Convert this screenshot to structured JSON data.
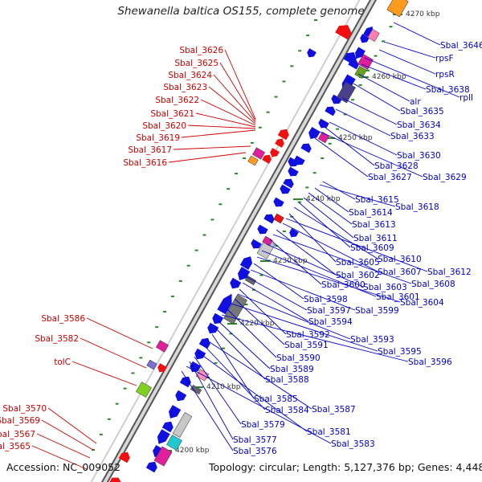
{
  "header": {
    "title": "Shewanella baltica OS155, complete genome"
  },
  "footer": {
    "accession": "Accession: NC_009052",
    "topology": "Topology: circular; Length: 5,127,376 bp; Genes: 4,448"
  },
  "scale_ticks": [
    "4270 kbp",
    "4260 kbp",
    "4250 kbp",
    "4240 kbp",
    "4230 kbp",
    "4220 kbp",
    "4210 kbp",
    "4200 kbp"
  ],
  "colors": {
    "reverse_strand_label": "#d00000",
    "forward_strand_label": "#0000cc",
    "backbone": "#6e6e6e"
  },
  "genes_left": [
    "Sbal_3626",
    "Sbal_3625",
    "Sbal_3624",
    "Sbal_3623",
    "Sbal_3622",
    "Sbal_3621",
    "Sbal_3620",
    "Sbal_3619",
    "Sbal_3617",
    "Sbal_3616",
    "Sbal_3586",
    "Sbal_3582",
    "tolC",
    "Sbal_3570",
    "Sbal_3569",
    "Sbal_3567",
    "Sbal_3565"
  ],
  "genes_right": [
    "Sbal_3646",
    "rpsF",
    "rpsR",
    "rplI",
    "Sbal_3638",
    "alr",
    "Sbal_3635",
    "Sbal_3634",
    "Sbal_3633",
    "Sbal_3630",
    "Sbal_3628",
    "Sbal_3629",
    "Sbal_3627",
    "Sbal_3615",
    "Sbal_3618",
    "Sbal_3614",
    "Sbal_3613",
    "Sbal_3611",
    "Sbal_3609",
    "Sbal_3610",
    "Sbal_3605",
    "Sbal_3612",
    "Sbal_3607",
    "Sbal_3602",
    "Sbal_3608",
    "Sbal_3600",
    "Sbal_3603",
    "Sbal_3601",
    "Sbal_3604",
    "Sbal_3598",
    "Sbal_3599",
    "Sbal_3597",
    "Sbal_3594",
    "Sbal_3592",
    "Sbal_3593",
    "Sbal_3591",
    "Sbal_3595",
    "Sbal_3590",
    "Sbal_3596",
    "Sbal_3589",
    "Sbal_3588",
    "Sbal_3585",
    "Sbal_3587",
    "Sbal_3584",
    "Sbal_3581",
    "Sbal_3579",
    "Sbal_3577",
    "Sbal_3583",
    "Sbal_3576"
  ]
}
